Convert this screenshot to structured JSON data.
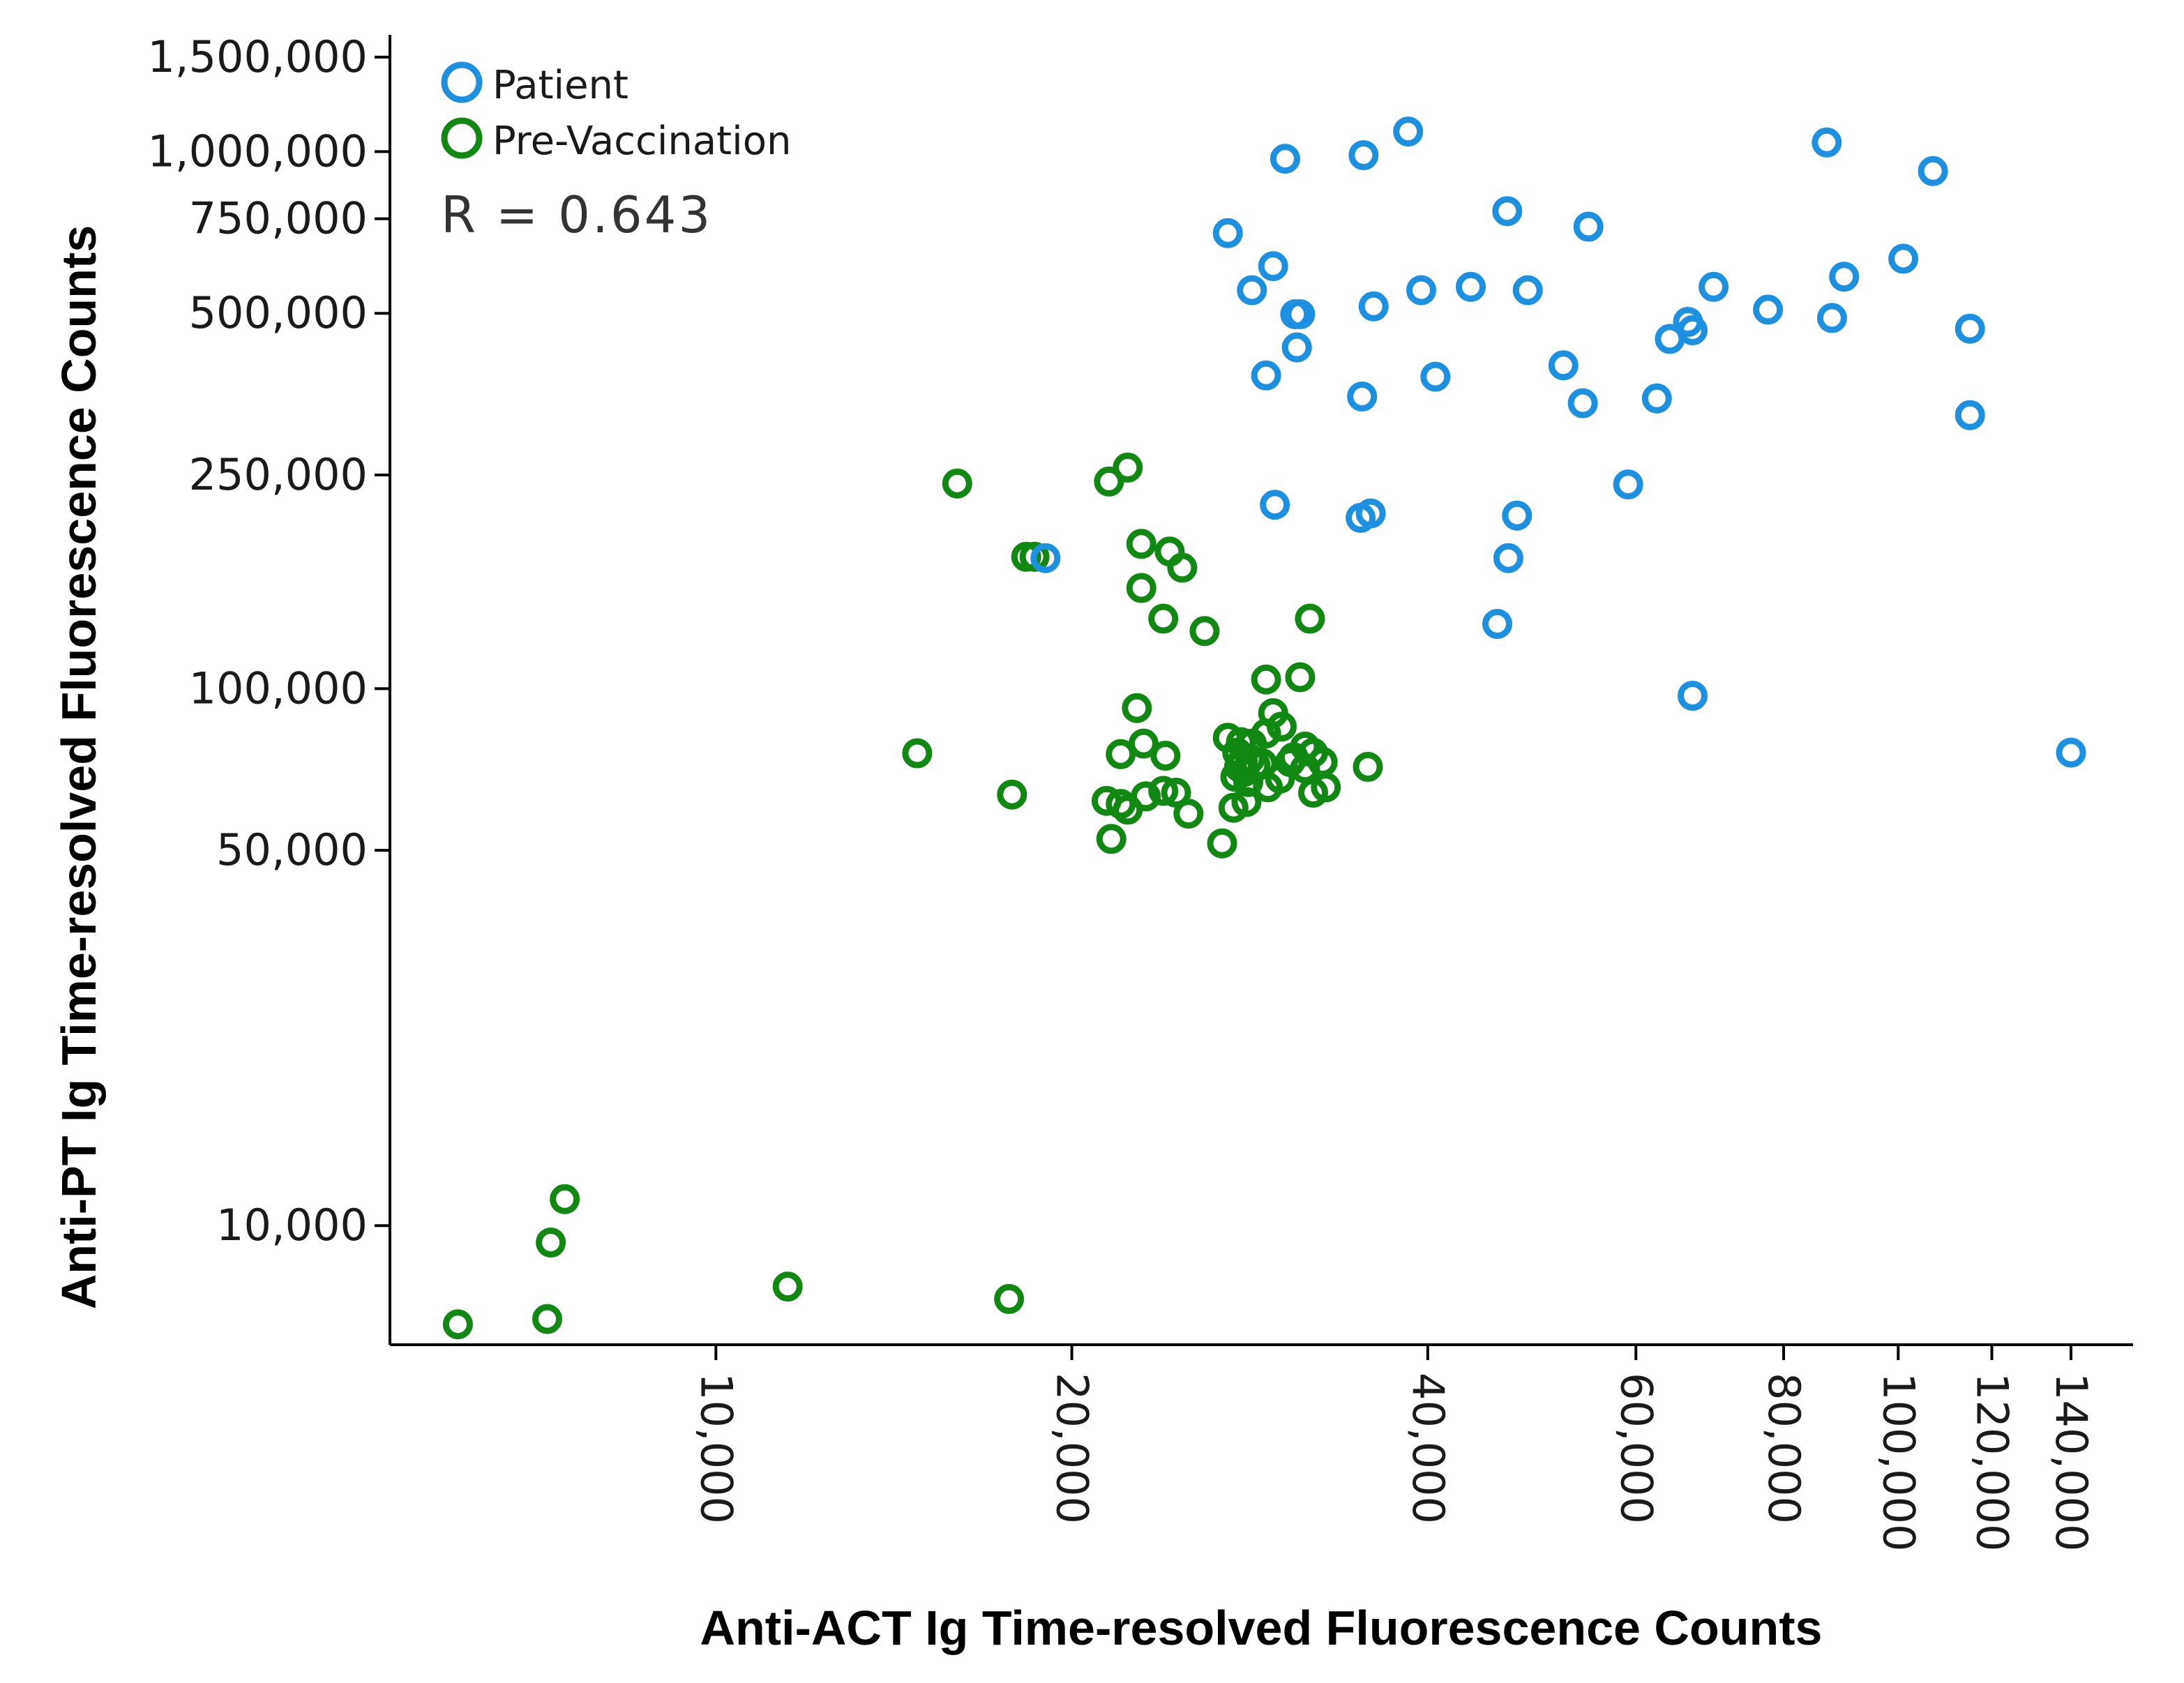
{
  "chart_data": {
    "type": "scatter",
    "title": "",
    "xlabel": "Anti-ACT Ig Time-resolved Fluorescence Counts",
    "ylabel": "Anti-PT Ig Time-resolved Fluorescence Counts",
    "x_scale": "log",
    "y_scale": "log",
    "xlim": [
      5300,
      158000
    ],
    "ylim": [
      6000,
      1650000
    ],
    "x_ticks": [
      10000,
      20000,
      40000,
      60000,
      80000,
      100000,
      120000,
      140000
    ],
    "x_tick_labels": [
      "10,000",
      "20,000",
      "40,000",
      "60,000",
      "80,000",
      "100,000",
      "120,000",
      "140,000"
    ],
    "y_ticks": [
      10000,
      50000,
      100000,
      250000,
      500000,
      750000,
      1000000,
      1500000
    ],
    "y_tick_labels": [
      "10,000",
      "50,000",
      "100,000",
      "250,000",
      "500,000",
      "750,000",
      "1,000,000",
      "1,500,000"
    ],
    "legend_position": "top-left",
    "annotation": "R = 0.643",
    "series": [
      {
        "name": "Patient",
        "color": "#1e90e0",
        "points": [
          [
            38500,
            1090000
          ],
          [
            35300,
            985000
          ],
          [
            87000,
            1040000
          ],
          [
            107000,
            920000
          ],
          [
            30300,
            970000
          ],
          [
            46700,
            775000
          ],
          [
            54700,
            725000
          ],
          [
            27100,
            705000
          ],
          [
            101000,
            632000
          ],
          [
            29600,
            612000
          ],
          [
            90000,
            585000
          ],
          [
            69800,
            560000
          ],
          [
            43500,
            560000
          ],
          [
            39500,
            552000
          ],
          [
            28400,
            552000
          ],
          [
            48600,
            552000
          ],
          [
            36000,
            515000
          ],
          [
            77600,
            508000
          ],
          [
            30900,
            498000
          ],
          [
            31200,
            498000
          ],
          [
            87900,
            490000
          ],
          [
            66400,
            482000
          ],
          [
            67000,
            465000
          ],
          [
            115000,
            468000
          ],
          [
            64100,
            448000
          ],
          [
            31000,
            432000
          ],
          [
            52100,
            400000
          ],
          [
            29200,
            383000
          ],
          [
            40600,
            381000
          ],
          [
            35200,
            350000
          ],
          [
            54100,
            340000
          ],
          [
            62500,
            347000
          ],
          [
            115000,
            323000
          ],
          [
            59100,
            240000
          ],
          [
            35100,
            208000
          ],
          [
            35800,
            212000
          ],
          [
            29700,
            220000
          ],
          [
            47600,
            210000
          ],
          [
            46800,
            175000
          ],
          [
            19000,
            175000
          ],
          [
            45800,
            132000
          ],
          [
            67000,
            97000
          ],
          [
            140000,
            76000
          ]
        ]
      },
      {
        "name": "Pre-Vaccination",
        "color": "#118811",
        "points": [
          [
            16000,
            241000
          ],
          [
            21500,
            243000
          ],
          [
            22300,
            258000
          ],
          [
            18300,
            176000
          ],
          [
            18600,
            176000
          ],
          [
            22900,
            186000
          ],
          [
            24200,
            180000
          ],
          [
            24800,
            168000
          ],
          [
            22900,
            154000
          ],
          [
            23900,
            135000
          ],
          [
            25900,
            128000
          ],
          [
            31800,
            135000
          ],
          [
            31200,
            105000
          ],
          [
            29200,
            104000
          ],
          [
            22700,
            92000
          ],
          [
            29600,
            90000
          ],
          [
            30100,
            85000
          ],
          [
            29200,
            82500
          ],
          [
            27100,
            81000
          ],
          [
            23000,
            79000
          ],
          [
            27800,
            79500
          ],
          [
            28400,
            79000
          ],
          [
            31500,
            78000
          ],
          [
            32000,
            76000
          ],
          [
            30800,
            74500
          ],
          [
            27600,
            76000
          ],
          [
            27900,
            73500
          ],
          [
            28300,
            74000
          ],
          [
            27700,
            71500
          ],
          [
            28000,
            70000
          ],
          [
            28600,
            72000
          ],
          [
            29000,
            72500
          ],
          [
            30600,
            73000
          ],
          [
            31500,
            71000
          ],
          [
            32600,
            73000
          ],
          [
            27500,
            68500
          ],
          [
            28200,
            67000
          ],
          [
            30000,
            68000
          ],
          [
            29300,
            65500
          ],
          [
            32000,
            64000
          ],
          [
            32800,
            65500
          ],
          [
            22000,
            75500
          ],
          [
            24000,
            75000
          ],
          [
            35600,
            71500
          ],
          [
            14800,
            75800
          ],
          [
            17800,
            63500
          ],
          [
            23100,
            63000
          ],
          [
            23900,
            64500
          ],
          [
            24500,
            64000
          ],
          [
            22000,
            61000
          ],
          [
            22300,
            59500
          ],
          [
            25100,
            58500
          ],
          [
            27400,
            60000
          ],
          [
            28100,
            61500
          ],
          [
            21400,
            61800
          ],
          [
            26800,
            51500
          ],
          [
            21600,
            52500
          ],
          [
            7450,
            11200
          ],
          [
            7250,
            9300
          ],
          [
            11500,
            7700
          ],
          [
            17700,
            7300
          ],
          [
            7200,
            6700
          ],
          [
            6050,
            6550
          ]
        ]
      }
    ]
  }
}
